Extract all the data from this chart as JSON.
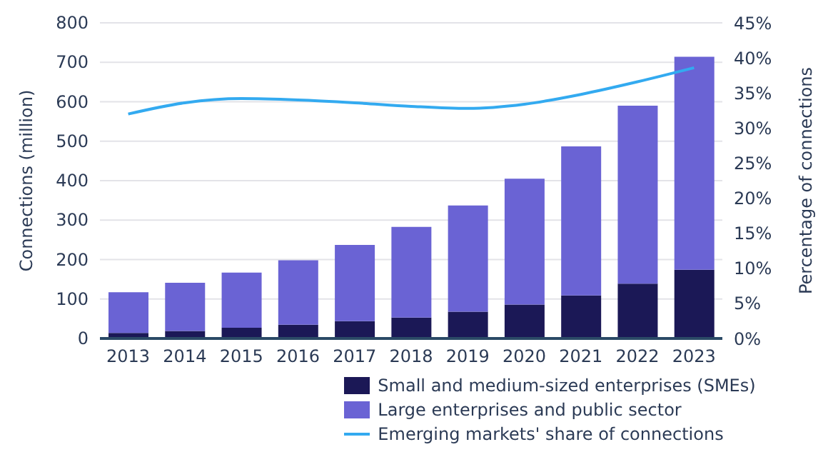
{
  "chart_data": {
    "type": "bar",
    "stacked": true,
    "ylabel": "Connections (million)",
    "y2label": "Percentage of connections",
    "categories": [
      "2013",
      "2014",
      "2015",
      "2016",
      "2017",
      "2018",
      "2019",
      "2020",
      "2021",
      "2022",
      "2023"
    ],
    "series": [
      {
        "name": "Small and medium-sized enterprises (SMEs)",
        "color": "#1b1856",
        "values": [
          14,
          19,
          27,
          35,
          44,
          53,
          68,
          86,
          109,
          139,
          174
        ]
      },
      {
        "name": "Large enterprises and public sector",
        "color": "#6a63d4",
        "values": [
          103,
          122,
          140,
          163,
          193,
          230,
          269,
          319,
          378,
          451,
          540
        ]
      },
      {
        "name": "Emerging markets' share of connections",
        "type": "line",
        "axis": "y2",
        "color": "#33aaf0",
        "marker": "none",
        "values": [
          32.0,
          33.6,
          34.2,
          34.0,
          33.6,
          33.1,
          32.8,
          33.4,
          34.8,
          36.6,
          38.6
        ]
      }
    ],
    "ylim": [
      0,
      800
    ],
    "yticks": [
      0,
      100,
      200,
      300,
      400,
      500,
      600,
      700,
      800
    ],
    "y2lim": [
      0,
      45
    ],
    "y2ticks": [
      {
        "value": 0,
        "label": "0%"
      },
      {
        "value": 5,
        "label": "5%"
      },
      {
        "value": 10,
        "label": "10%"
      },
      {
        "value": 15,
        "label": "15%"
      },
      {
        "value": 20,
        "label": "20%"
      },
      {
        "value": 25,
        "label": "25%"
      },
      {
        "value": 30,
        "label": "30%"
      },
      {
        "value": 35,
        "label": "35%"
      },
      {
        "value": 40,
        "label": "40%"
      },
      {
        "value": 45,
        "label": "45%"
      }
    ],
    "grid": "y",
    "legend": "bottom"
  }
}
